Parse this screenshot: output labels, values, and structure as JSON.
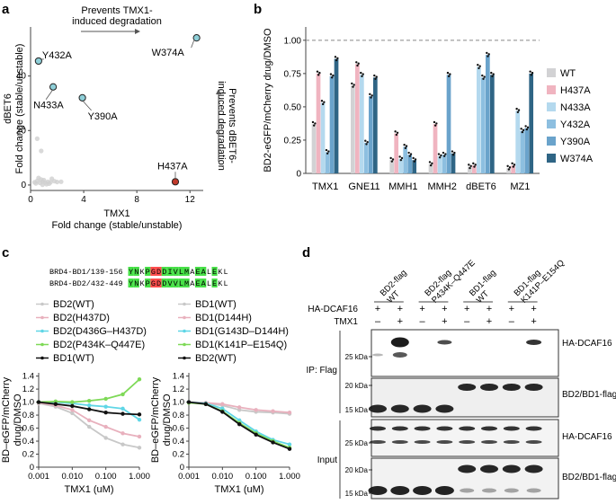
{
  "panel_labels": {
    "a": "a",
    "b": "b",
    "c": "c",
    "d": "d"
  },
  "colors": {
    "WT": "#d2d2d4",
    "H437A": "#f0b4c0",
    "N433A": "#b4d9ee",
    "Y432A": "#8dbfe0",
    "Y390A": "#6aa3cb",
    "W374A": "#2f6585",
    "red_point": "#c0392b",
    "teal_point": "#8ecfd8"
  },
  "panel_a": {
    "arrow_top": "Prevents TMX1-\ninduced degradation",
    "arrow_side": "Prevents dBET6-\ninduced degradation",
    "point_labels": {
      "Y432A": "Y432A",
      "N433A": "N433A",
      "Y390A": "Y390A",
      "W374A": "W374A",
      "H437A": "H437A"
    }
  },
  "panel_b": {
    "legend": [
      "WT",
      "H437A",
      "N433A",
      "Y432A",
      "Y390A",
      "W374A"
    ]
  },
  "panel_c": {
    "seq1_name": "BRD4-BD1/139-156",
    "seq1": "YNKPGDDIVLMAEALEKL",
    "seq2_name": "BRD4-BD2/432-449",
    "seq2": "YNKPGDDVVLMAEALEKL",
    "legend_left": [
      "BD2(WT)",
      "BD2(H437D)",
      "BD2(D436G–H437D)",
      "BD2(P434K–Q447E)",
      "BD1(WT)"
    ],
    "legend_right": [
      "BD1(WT)",
      "BD1(D144H)",
      "BD1(G143D–D144H)",
      "BD1(K141P–E154Q)",
      "BD2(WT)"
    ]
  },
  "panel_d": {
    "headers": [
      "BD2-flag\nWT",
      "BD2-flag\nP434K–Q447E",
      "BD1-flag\nWT",
      "BD1-flag\nK141P–E154Q"
    ],
    "row_hadcaf": "HA-DCAF16",
    "row_tmx": "TMX1",
    "hadcaf_signs": [
      "+",
      "+",
      "+",
      "+",
      "+",
      "+",
      "+",
      "+"
    ],
    "tmx_signs": [
      "–",
      "+",
      "–",
      "+",
      "–",
      "+",
      "–",
      "+"
    ],
    "ip_label": "IP: Flag",
    "input_label": "Input",
    "band_labels": [
      "HA-DCAF16",
      "BD2/BD1-flag",
      "HA-DCAF16",
      "BD2/BD1-flag"
    ],
    "kda": [
      "25 kDa",
      "20 kDa",
      "15 kDa",
      "25 kDa",
      "20 kDa",
      "15 kDa"
    ]
  },
  "chart_data": [
    {
      "type": "scatter",
      "panel": "a",
      "xlabel": "TMX1\nFold change (stable/unstable)",
      "ylabel": "dBET6\nFold change (stable/unstable)",
      "xlim": [
        0,
        13
      ],
      "ylim": [
        -2,
        58
      ],
      "xticks": [
        0,
        4,
        8,
        12
      ],
      "yticks": [
        0,
        20,
        40
      ],
      "points": [
        {
          "name": "Y432A",
          "x": 0.6,
          "y": 45.5
        },
        {
          "name": "N433A",
          "x": 1.7,
          "y": 36
        },
        {
          "name": "Y390A",
          "x": 3.9,
          "y": 32
        },
        {
          "name": "W374A",
          "x": 12.5,
          "y": 54
        },
        {
          "name": "H437A",
          "x": 10.9,
          "y": 1.2
        }
      ],
      "background_points": [
        {
          "x": 0.3,
          "y": 1.0
        },
        {
          "x": 0.5,
          "y": 1.5
        },
        {
          "x": 0.7,
          "y": 0.8
        },
        {
          "x": 0.9,
          "y": 1.3
        },
        {
          "x": 1.1,
          "y": 0.9
        },
        {
          "x": 1.3,
          "y": 1.2
        },
        {
          "x": 1.5,
          "y": 1.0
        },
        {
          "x": 1.8,
          "y": 1.4
        },
        {
          "x": 0.4,
          "y": 0.6
        },
        {
          "x": 0.8,
          "y": 2.0
        },
        {
          "x": 1.0,
          "y": 1.8
        },
        {
          "x": 1.4,
          "y": 0.5
        },
        {
          "x": 2.0,
          "y": 1.1
        },
        {
          "x": 0.6,
          "y": 2.6
        },
        {
          "x": 1.2,
          "y": 0.3
        },
        {
          "x": 0.9,
          "y": 0.1
        },
        {
          "x": 0.5,
          "y": 17.0
        },
        {
          "x": 0.8,
          "y": 12.5
        },
        {
          "x": 2.3,
          "y": 1.2
        },
        {
          "x": 1.6,
          "y": 2.3
        }
      ]
    },
    {
      "type": "bar",
      "panel": "b",
      "ylabel": "BD2-eGFP/mCherry drug/DMSO",
      "categories": [
        "TMX1",
        "GNE11",
        "MMH1",
        "MMH2",
        "dBET6",
        "MZ1"
      ],
      "ylim": [
        0,
        1.1
      ],
      "yticks": [
        0,
        0.25,
        0.5,
        0.75,
        1.0
      ],
      "yticklabels": [
        "0",
        "0.25",
        "0.50",
        "0.75",
        "1.00"
      ],
      "reference_line": 1.0,
      "series": [
        {
          "name": "WT",
          "values": [
            0.37,
            0.66,
            0.1,
            0.07,
            0.05,
            0.04
          ]
        },
        {
          "name": "H437A",
          "values": [
            0.75,
            0.82,
            0.3,
            0.37,
            0.06,
            0.06
          ]
        },
        {
          "name": "N433A",
          "values": [
            0.53,
            0.74,
            0.11,
            0.13,
            0.8,
            0.47
          ]
        },
        {
          "name": "Y432A",
          "values": [
            0.16,
            0.23,
            0.2,
            0.14,
            0.72,
            0.32
          ]
        },
        {
          "name": "Y390A",
          "values": [
            0.73,
            0.58,
            0.14,
            0.74,
            0.89,
            0.34
          ]
        },
        {
          "name": "W374A",
          "values": [
            0.86,
            0.72,
            0.1,
            0.15,
            0.74,
            0.75
          ]
        }
      ]
    },
    {
      "type": "line",
      "panel": "c-left",
      "xlabel": "TMX1 (uM)",
      "ylabel": "BD–eGFP/mCherry\ndrug/DMSO",
      "xscale": "log",
      "x": [
        0.001,
        0.0032,
        0.01,
        0.032,
        0.1,
        0.32,
        1.0
      ],
      "xticklabels": [
        "0.001",
        "0.010",
        "0.100",
        "1.000"
      ],
      "ylim": [
        0,
        1.45
      ],
      "yticks": [
        0,
        0.2,
        0.4,
        0.6,
        0.8,
        1.0,
        1.2,
        1.4
      ],
      "yticklabels": [
        "0",
        "0.2",
        "0.4",
        "0.6",
        "0.8",
        "1.0",
        "1.2",
        "1.4"
      ],
      "series": [
        {
          "name": "BD2(WT)",
          "color": "#c8c8c8",
          "values": [
            0.98,
            0.93,
            0.83,
            0.62,
            0.45,
            0.35,
            0.3
          ]
        },
        {
          "name": "BD2(H437D)",
          "color": "#e8b0bd",
          "values": [
            0.99,
            0.95,
            0.88,
            0.72,
            0.62,
            0.52,
            0.47
          ]
        },
        {
          "name": "BD2(D436G–H437D)",
          "color": "#5fd6e6",
          "values": [
            1.0,
            1.0,
            0.98,
            0.95,
            0.93,
            0.9,
            0.73
          ]
        },
        {
          "name": "BD2(P434K–Q447E)",
          "color": "#7ed957",
          "values": [
            1.0,
            1.01,
            1.0,
            1.02,
            1.05,
            1.12,
            1.35
          ]
        },
        {
          "name": "BD1(WT)",
          "color": "#111111",
          "values": [
            1.0,
            0.97,
            0.94,
            0.89,
            0.84,
            0.82,
            0.81
          ]
        }
      ]
    },
    {
      "type": "line",
      "panel": "c-right",
      "xlabel": "TMX1 (uM)",
      "ylabel": "BD–eGFP/mCherry\ndrug/DMSO",
      "xscale": "log",
      "x": [
        0.001,
        0.0032,
        0.01,
        0.032,
        0.1,
        0.32,
        1.0
      ],
      "xticklabels": [
        "0.001",
        "0.010",
        "0.100",
        "1.000"
      ],
      "ylim": [
        0,
        1.45
      ],
      "yticks": [
        0,
        0.2,
        0.4,
        0.6,
        0.8,
        1.0,
        1.2,
        1.4
      ],
      "yticklabels": [
        "0",
        "0.2",
        "0.4",
        "0.6",
        "0.8",
        "1.0",
        "1.2",
        "1.4"
      ],
      "series": [
        {
          "name": "BD1(WT)",
          "color": "#c8c8c8",
          "values": [
            1.0,
            0.98,
            0.95,
            0.88,
            0.85,
            0.84,
            0.82
          ]
        },
        {
          "name": "BD1(D144H)",
          "color": "#e8b0bd",
          "values": [
            1.0,
            0.99,
            0.97,
            0.92,
            0.88,
            0.86,
            0.84
          ]
        },
        {
          "name": "BD1(G143D–D144H)",
          "color": "#5fd6e6",
          "values": [
            1.0,
            0.98,
            0.9,
            0.72,
            0.55,
            0.42,
            0.35
          ]
        },
        {
          "name": "BD1(K141P–E154Q)",
          "color": "#7ed957",
          "values": [
            0.99,
            0.97,
            0.86,
            0.68,
            0.52,
            0.4,
            0.3
          ]
        },
        {
          "name": "BD2(WT)",
          "color": "#111111",
          "values": [
            1.0,
            0.97,
            0.85,
            0.66,
            0.5,
            0.38,
            0.28
          ]
        }
      ]
    }
  ]
}
